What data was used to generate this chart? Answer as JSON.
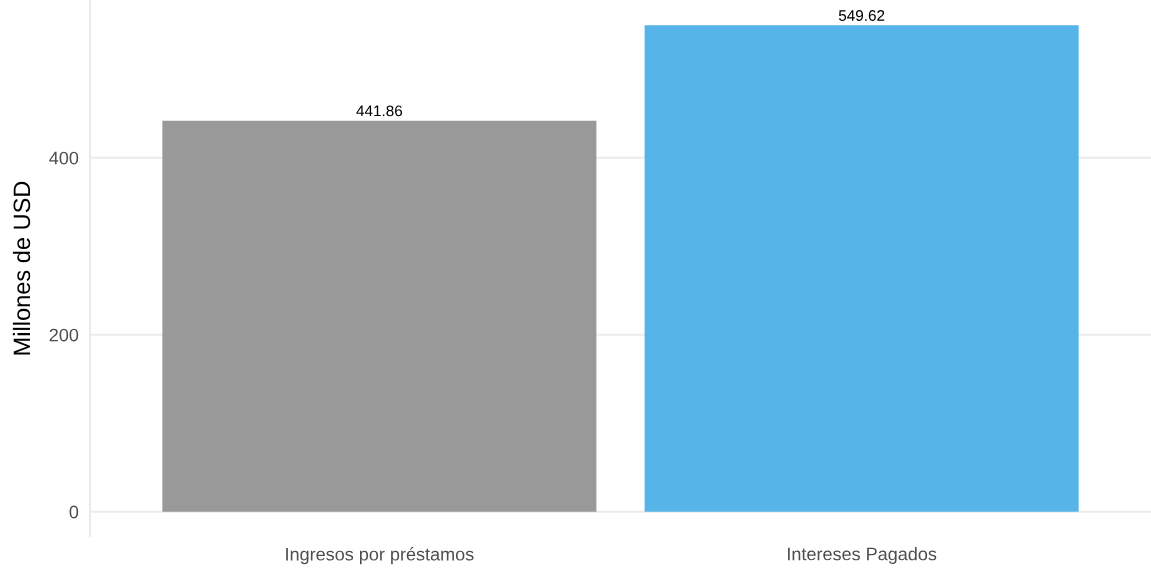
{
  "chart_data": {
    "type": "bar",
    "ylabel": "Millones de USD",
    "categories": [
      "Ingresos por préstamos",
      "Intereses Pagados"
    ],
    "values": [
      441.86,
      549.62
    ],
    "colors": [
      "#999999",
      "#56b4e9"
    ],
    "ylim": [
      -27.48,
      577.1
    ],
    "yticks": [
      0,
      200,
      400
    ],
    "grid": "y",
    "data_labels": true
  }
}
